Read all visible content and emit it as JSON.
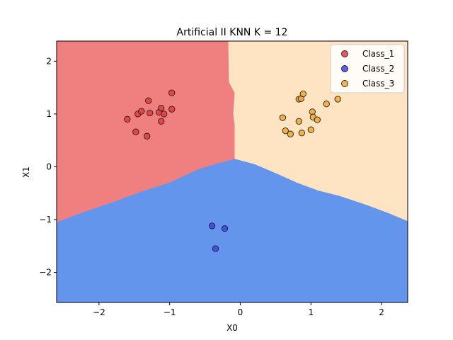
{
  "chart_data": {
    "type": "scatter",
    "title": "Artificial II KNN K = 12",
    "xlabel": "X0",
    "ylabel": "X1",
    "xlim": [
      -2.6,
      2.37
    ],
    "ylim": [
      -2.57,
      2.38
    ],
    "xticks": [
      -2,
      -1,
      0,
      1,
      2
    ],
    "yticks": [
      -2,
      -1,
      0,
      1,
      2
    ],
    "grid": false,
    "legend_position": "top-right",
    "regions": [
      {
        "class": "Class_1",
        "color": "#f08080"
      },
      {
        "class": "Class_2",
        "color": "#6495ed"
      },
      {
        "class": "Class_3",
        "color": "#ffe4c4"
      }
    ],
    "boundary": {
      "vertical_x1": [
        [
          -0.17,
          2.38
        ],
        [
          -0.16,
          1.6
        ],
        [
          -0.08,
          1.4
        ],
        [
          -0.1,
          1.0
        ],
        [
          -0.08,
          0.8
        ],
        [
          -0.08,
          0.2
        ]
      ],
      "left_curve": [
        [
          -2.6,
          -1.05
        ],
        [
          -2.2,
          -0.85
        ],
        [
          -1.8,
          -0.67
        ],
        [
          -1.4,
          -0.47
        ],
        [
          -1.0,
          -0.3
        ],
        [
          -0.6,
          -0.05
        ],
        [
          -0.3,
          0.07
        ],
        [
          -0.08,
          0.15
        ]
      ],
      "right_curve": [
        [
          -0.08,
          0.15
        ],
        [
          0.2,
          0.05
        ],
        [
          0.5,
          -0.12
        ],
        [
          0.8,
          -0.3
        ],
        [
          1.1,
          -0.45
        ],
        [
          1.4,
          -0.55
        ],
        [
          1.8,
          -0.73
        ],
        [
          2.1,
          -0.88
        ],
        [
          2.37,
          -1.03
        ]
      ]
    },
    "series": [
      {
        "name": "Class_1",
        "color": "#e83a3a",
        "points": [
          [
            -1.6,
            0.9
          ],
          [
            -1.45,
            1.0
          ],
          [
            -1.4,
            1.05
          ],
          [
            -1.3,
            1.25
          ],
          [
            -1.28,
            1.02
          ],
          [
            -1.15,
            1.03
          ],
          [
            -1.12,
            1.11
          ],
          [
            -1.08,
            1.0
          ],
          [
            -0.97,
            1.4
          ],
          [
            -0.97,
            1.09
          ],
          [
            -1.12,
            0.86
          ],
          [
            -1.48,
            0.66
          ],
          [
            -1.32,
            0.58
          ]
        ]
      },
      {
        "name": "Class_2",
        "color": "#3f3ff0",
        "points": [
          [
            -0.4,
            -1.12
          ],
          [
            -0.22,
            -1.17
          ],
          [
            -0.35,
            -1.55
          ]
        ]
      },
      {
        "name": "Class_3",
        "color": "#f0a830",
        "points": [
          [
            0.6,
            0.93
          ],
          [
            0.83,
            1.28
          ],
          [
            0.86,
            1.29
          ],
          [
            0.89,
            1.38
          ],
          [
            1.22,
            1.19
          ],
          [
            1.38,
            1.28
          ],
          [
            1.02,
            1.04
          ],
          [
            1.03,
            0.94
          ],
          [
            1.09,
            0.89
          ],
          [
            0.83,
            0.86
          ],
          [
            0.64,
            0.68
          ],
          [
            0.71,
            0.62
          ],
          [
            0.87,
            0.64
          ],
          [
            1.0,
            0.7
          ]
        ]
      }
    ]
  }
}
